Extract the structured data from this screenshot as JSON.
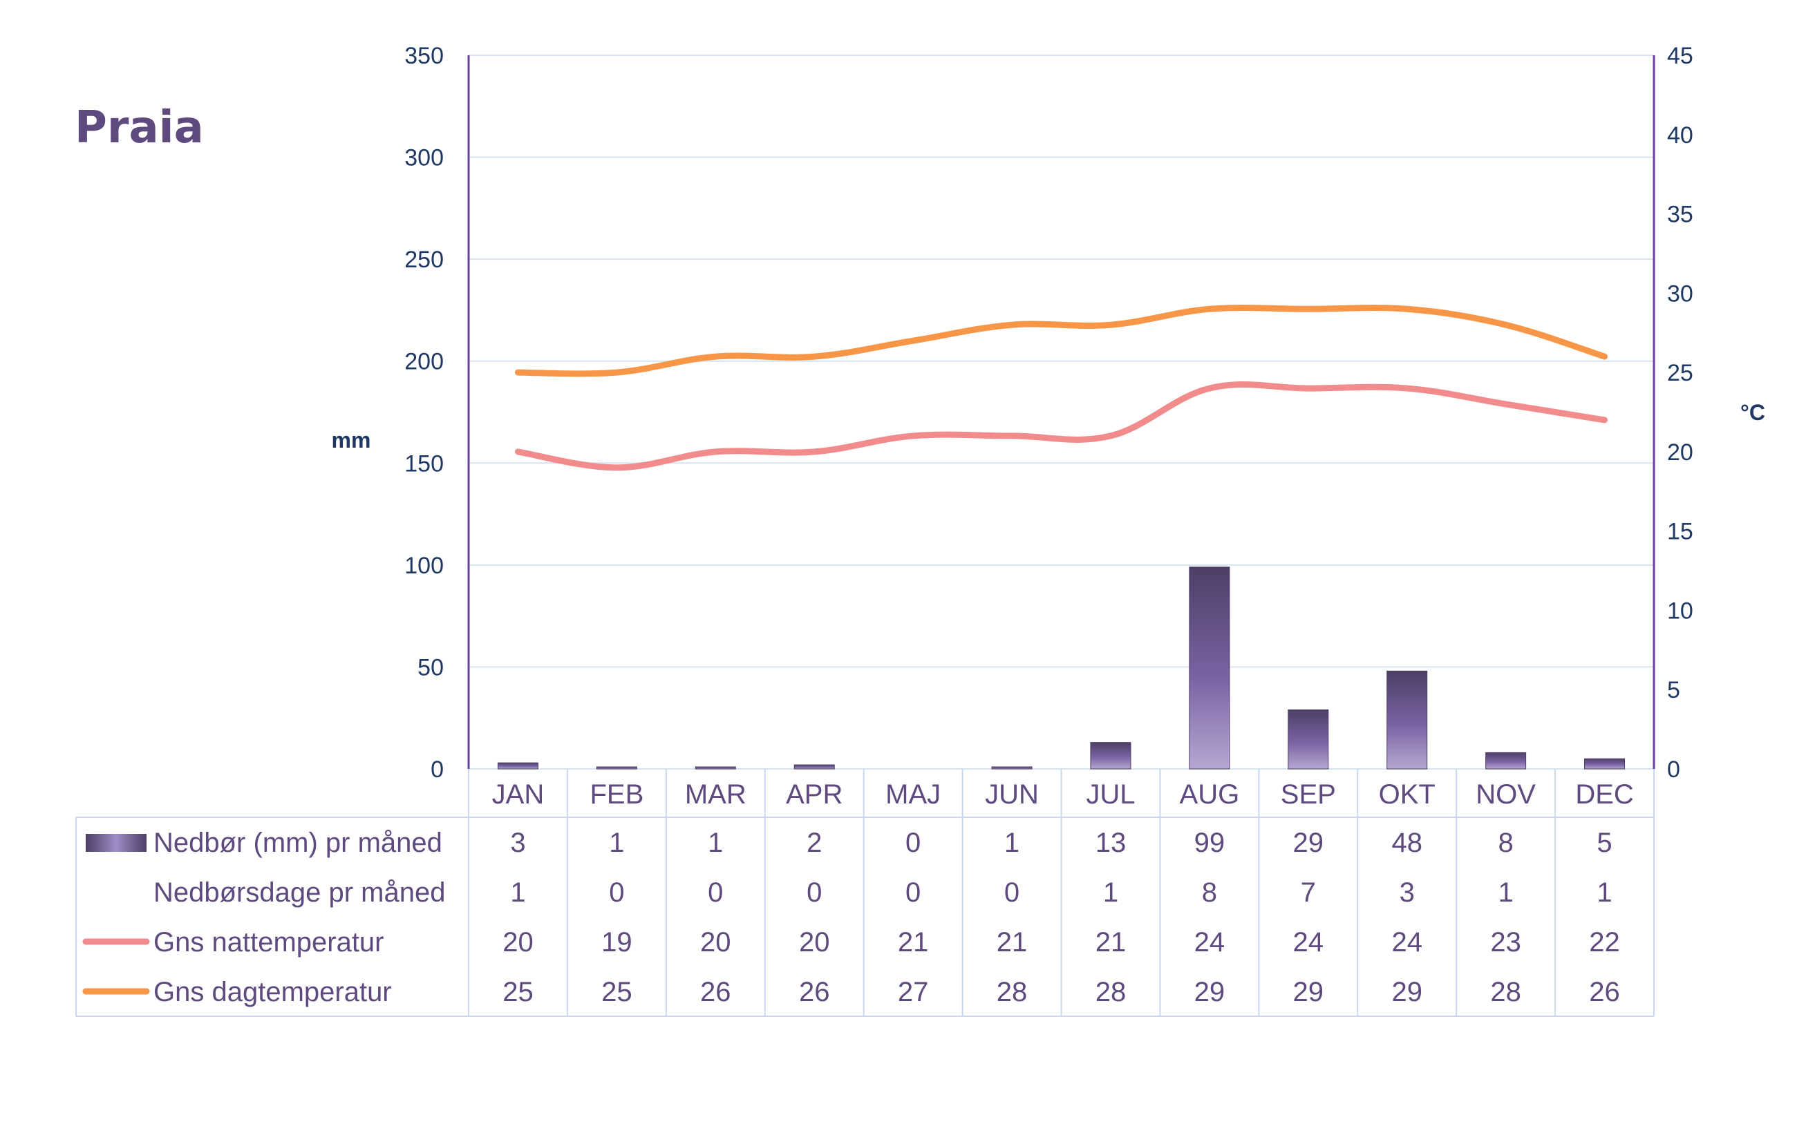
{
  "title": "Praia",
  "chart_data": {
    "type": "bar",
    "title": "Praia",
    "categories": [
      "JAN",
      "FEB",
      "MAR",
      "APR",
      "MAJ",
      "JUN",
      "JUL",
      "AUG",
      "SEP",
      "OKT",
      "NOV",
      "DEC"
    ],
    "ylabel_left": "mm",
    "ylabel_right": "°C",
    "ylim_left": [
      0,
      350
    ],
    "ylim_right": [
      0,
      45
    ],
    "yticks_left": [
      0,
      50,
      100,
      150,
      200,
      250,
      300,
      350
    ],
    "yticks_right": [
      0,
      5,
      10,
      15,
      20,
      25,
      30,
      35,
      40,
      45
    ],
    "grid": true,
    "series": [
      {
        "name": "Nedbør (mm) pr måned",
        "type": "bar",
        "axis": "left",
        "color": "#5e4a7f",
        "values": [
          3,
          1,
          1,
          2,
          0,
          1,
          13,
          99,
          29,
          48,
          8,
          5
        ]
      },
      {
        "name": "Nedbørsdage pr måned",
        "type": "table",
        "axis": "none",
        "values": [
          1,
          0,
          0,
          0,
          0,
          0,
          1,
          8,
          7,
          3,
          1,
          1
        ]
      },
      {
        "name": "Gns nattemperatur",
        "type": "line",
        "axis": "right",
        "color": "#f28b8c",
        "values": [
          20,
          19,
          20,
          20,
          21,
          21,
          21,
          24,
          24,
          24,
          23,
          22
        ]
      },
      {
        "name": "Gns dagtemperatur",
        "type": "line",
        "axis": "right",
        "color": "#f79646",
        "values": [
          25,
          25,
          26,
          26,
          27,
          28,
          28,
          29,
          29,
          29,
          28,
          26
        ]
      }
    ],
    "legend": "data table below chart"
  }
}
